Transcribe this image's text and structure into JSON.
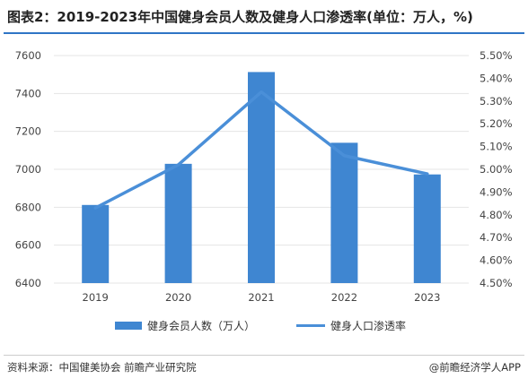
{
  "title": "图表2：2019-2023年中国健身会员人数及健身人口渗透率(单位：万人，%)",
  "footer": {
    "source": "资料来源：中国健美协会 前瞻产业研究院",
    "brand": "@前瞻经济学人APP"
  },
  "colors": {
    "bar": "#3f86d1",
    "line": "#4a8fd8",
    "rule": "#2f75c6",
    "grid": "#e4e4e4"
  },
  "chart_data": {
    "type": "bar",
    "categories": [
      "2019",
      "2020",
      "2021",
      "2022",
      "2023"
    ],
    "series": [
      {
        "name": "健身会员人数（万人）",
        "type": "bar",
        "axis": "left",
        "values": [
          6812,
          7029,
          7513,
          7140,
          6973
        ]
      },
      {
        "name": "健身人口渗透率",
        "type": "line",
        "axis": "right",
        "values": [
          4.83,
          5.02,
          5.34,
          5.06,
          4.98
        ]
      }
    ],
    "left_axis": {
      "ylim": [
        6400,
        7600
      ],
      "ticks": [
        "6400",
        "6600",
        "6800",
        "7000",
        "7200",
        "7400",
        "7600"
      ],
      "tick_values": [
        6400,
        6600,
        6800,
        7000,
        7200,
        7400,
        7600
      ]
    },
    "right_axis": {
      "ylim": [
        4.5,
        5.5
      ],
      "ticks": [
        "4.50%",
        "4.60%",
        "4.70%",
        "4.80%",
        "4.90%",
        "5.00%",
        "5.10%",
        "5.20%",
        "5.30%",
        "5.40%",
        "5.50%"
      ],
      "tick_values": [
        4.5,
        4.6,
        4.7,
        4.8,
        4.9,
        5.0,
        5.1,
        5.2,
        5.3,
        5.4,
        5.5
      ]
    },
    "grid": true,
    "legend_position": "bottom"
  }
}
